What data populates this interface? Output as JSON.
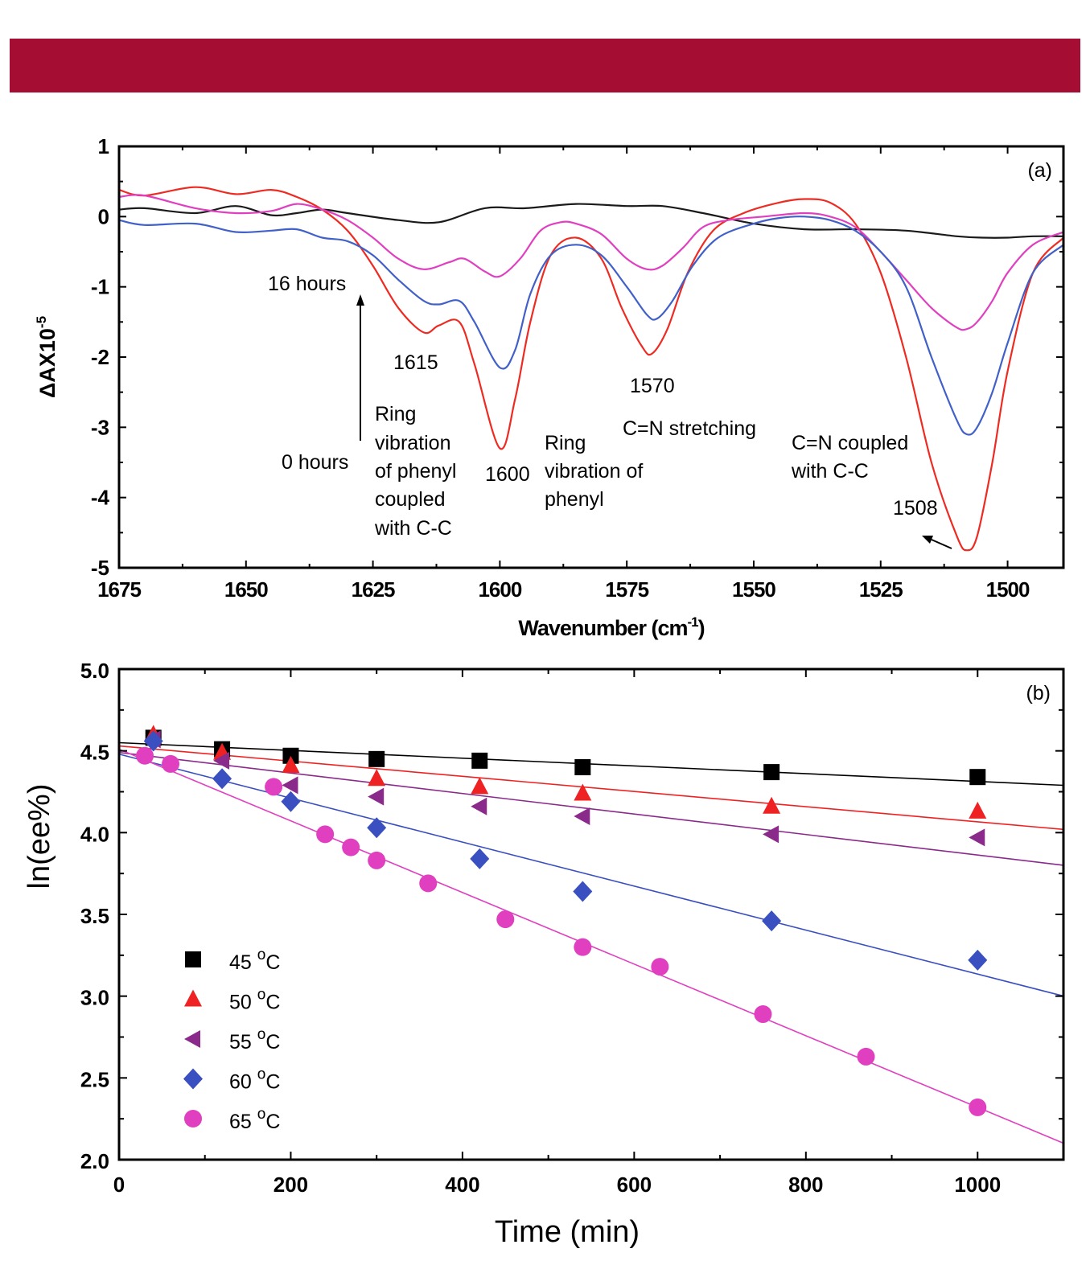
{
  "chart_data": [
    {
      "panel_label": "(a)",
      "type": "line",
      "xlabel": "Wavenumber (cm",
      "xlabel_sup": "-1",
      "xlabel_close": ")",
      "ylabel": "ΔAX10",
      "ylabel_sup": "-5",
      "xlim": [
        1675,
        1489
      ],
      "ylim": [
        -5,
        1
      ],
      "x_ticks": [
        1675,
        1650,
        1625,
        1600,
        1575,
        1550,
        1525,
        1500
      ],
      "y_ticks": [
        1,
        0,
        -1,
        -2,
        -3,
        -4,
        -5
      ],
      "grid": false,
      "colors": {
        "black": "#1a1a1a",
        "red": "#ee2b22",
        "magenta": "#e040c0",
        "blue": "#4160c8"
      },
      "series": [
        {
          "color": "black",
          "x": [
            1675,
            1670,
            1660,
            1652,
            1645,
            1640,
            1635,
            1630,
            1620,
            1612,
            1603,
            1595,
            1585,
            1575,
            1568,
            1560,
            1550,
            1540,
            1530,
            1520,
            1510,
            1505,
            1500,
            1495,
            1489
          ],
          "y": [
            0.1,
            0.12,
            0.05,
            0.15,
            0.02,
            0.05,
            0.1,
            0.05,
            -0.05,
            -0.08,
            0.12,
            0.12,
            0.18,
            0.15,
            0.15,
            0.05,
            -0.1,
            -0.18,
            -0.18,
            -0.2,
            -0.28,
            -0.3,
            -0.3,
            -0.28,
            -0.28
          ]
        },
        {
          "color": "red",
          "x": [
            1675,
            1670,
            1660,
            1652,
            1645,
            1640,
            1635,
            1630,
            1625,
            1620,
            1615,
            1612,
            1608,
            1605,
            1600,
            1597,
            1594,
            1590,
            1585,
            1580,
            1576,
            1572,
            1570,
            1567,
            1563,
            1558,
            1552,
            1545,
            1540,
            1535,
            1530,
            1525,
            1520,
            1515,
            1510,
            1508,
            1506,
            1503,
            1500,
            1495,
            1489
          ],
          "y": [
            0.38,
            0.3,
            0.42,
            0.32,
            0.38,
            0.28,
            0.1,
            -0.2,
            -0.7,
            -1.3,
            -1.65,
            -1.55,
            -1.5,
            -2.1,
            -3.3,
            -2.6,
            -1.5,
            -0.55,
            -0.3,
            -0.6,
            -1.3,
            -1.85,
            -1.95,
            -1.6,
            -0.8,
            -0.2,
            0.05,
            0.2,
            0.25,
            0.2,
            -0.1,
            -0.8,
            -2.0,
            -3.5,
            -4.55,
            -4.75,
            -4.55,
            -3.5,
            -2.2,
            -0.8,
            -0.3
          ]
        },
        {
          "color": "magenta",
          "x": [
            1675,
            1670,
            1660,
            1652,
            1645,
            1640,
            1635,
            1630,
            1625,
            1620,
            1615,
            1610,
            1607,
            1603,
            1600,
            1596,
            1592,
            1588,
            1585,
            1580,
            1575,
            1571,
            1568,
            1564,
            1560,
            1555,
            1548,
            1540,
            1535,
            1530,
            1525,
            1520,
            1515,
            1510,
            1508,
            1506,
            1503,
            1500,
            1495,
            1489
          ],
          "y": [
            0.28,
            0.3,
            0.12,
            0.05,
            0.08,
            0.18,
            0.1,
            -0.05,
            -0.3,
            -0.6,
            -0.75,
            -0.65,
            -0.6,
            -0.78,
            -0.85,
            -0.6,
            -0.2,
            -0.08,
            -0.1,
            -0.25,
            -0.6,
            -0.75,
            -0.7,
            -0.45,
            -0.15,
            -0.05,
            0.0,
            0.05,
            0.0,
            -0.15,
            -0.5,
            -0.9,
            -1.3,
            -1.58,
            -1.6,
            -1.5,
            -1.2,
            -0.8,
            -0.4,
            -0.22
          ]
        },
        {
          "color": "blue",
          "x": [
            1675,
            1670,
            1660,
            1652,
            1645,
            1640,
            1635,
            1630,
            1625,
            1620,
            1615,
            1612,
            1608,
            1605,
            1600,
            1597,
            1594,
            1590,
            1585,
            1580,
            1575,
            1571,
            1569,
            1566,
            1562,
            1557,
            1550,
            1545,
            1540,
            1535,
            1530,
            1525,
            1520,
            1515,
            1510,
            1508,
            1506,
            1503,
            1500,
            1495,
            1489
          ],
          "y": [
            -0.05,
            -0.12,
            -0.1,
            -0.22,
            -0.2,
            -0.18,
            -0.3,
            -0.35,
            -0.55,
            -0.9,
            -1.2,
            -1.25,
            -1.2,
            -1.5,
            -2.15,
            -1.9,
            -1.1,
            -0.55,
            -0.4,
            -0.55,
            -1.0,
            -1.4,
            -1.45,
            -1.2,
            -0.7,
            -0.3,
            -0.1,
            -0.02,
            0.0,
            -0.05,
            -0.2,
            -0.5,
            -1.0,
            -2.0,
            -2.9,
            -3.1,
            -3.0,
            -2.5,
            -1.8,
            -0.8,
            -0.4
          ]
        }
      ],
      "annotations": [
        {
          "text": "16 hours"
        },
        {
          "text": "0 hours"
        },
        {
          "text": "1615"
        },
        {
          "text": "Ring",
          "block": "ring1"
        },
        {
          "text": "vibration",
          "block": "ring1"
        },
        {
          "text": "of phenyl",
          "block": "ring1"
        },
        {
          "text": "coupled",
          "block": "ring1"
        },
        {
          "text": "with C-C",
          "block": "ring1"
        },
        {
          "text": "1600"
        },
        {
          "text": "Ring",
          "block": "ring2"
        },
        {
          "text": "vibration of",
          "block": "ring2"
        },
        {
          "text": "phenyl",
          "block": "ring2"
        },
        {
          "text": "1570"
        },
        {
          "text": "C=N stretching"
        },
        {
          "text": "C=N coupled",
          "block": "cn"
        },
        {
          "text": "with C-C",
          "block": "cn"
        },
        {
          "text": "1508"
        }
      ]
    },
    {
      "panel_label": "(b)",
      "type": "scatter",
      "xlabel": "Time (min)",
      "ylabel": "ln(ee%)",
      "xlim": [
        0,
        1100
      ],
      "ylim": [
        2.0,
        5.0
      ],
      "x_ticks": [
        0,
        200,
        400,
        600,
        800,
        1000
      ],
      "y_ticks": [
        "5.0",
        "4.5",
        "4.0",
        "3.5",
        "3.0",
        "2.5",
        "2.0"
      ],
      "grid": false,
      "legend_position": "bottom-left",
      "series": [
        {
          "name": "45 ",
          "name_sup": "o",
          "name_unit": "C",
          "marker": "square",
          "color": "#000000",
          "line_color": "#000000",
          "fit": [
            4.55,
            -0.000237
          ],
          "x": [
            40,
            120,
            200,
            300,
            420,
            540,
            760,
            1000
          ],
          "y": [
            4.58,
            4.51,
            4.47,
            4.45,
            4.44,
            4.4,
            4.37,
            4.34
          ]
        },
        {
          "name": "50 ",
          "name_sup": "o",
          "name_unit": "C",
          "marker": "triangle-up",
          "color": "#ee2222",
          "line_color": "#ee2222",
          "fit": [
            4.53,
            -0.000464
          ],
          "x": [
            40,
            120,
            200,
            300,
            420,
            540,
            760,
            1000
          ],
          "y": [
            4.6,
            4.49,
            4.41,
            4.33,
            4.28,
            4.24,
            4.16,
            4.13
          ]
        },
        {
          "name": "55 ",
          "name_sup": "o",
          "name_unit": "C",
          "marker": "triangle-left",
          "color": "#8a2a8a",
          "line_color": "#8a2a8a",
          "fit": [
            4.49,
            -0.000627
          ],
          "x": [
            40,
            120,
            200,
            300,
            420,
            540,
            760,
            1000
          ],
          "y": [
            4.57,
            4.44,
            4.29,
            4.22,
            4.16,
            4.1,
            3.99,
            3.97
          ]
        },
        {
          "name": "60 ",
          "name_sup": "o",
          "name_unit": "C",
          "marker": "diamond",
          "color": "#3a4fc0",
          "line_color": "#3a4fc0",
          "fit": [
            4.48,
            -0.001345
          ],
          "x": [
            40,
            120,
            200,
            300,
            420,
            540,
            760,
            1000
          ],
          "y": [
            4.56,
            4.33,
            4.19,
            4.03,
            3.84,
            3.64,
            3.46,
            3.22
          ]
        },
        {
          "name": "65 ",
          "name_sup": "o",
          "name_unit": "C",
          "marker": "circle",
          "color": "#e040c0",
          "line_color": "#e040c0",
          "fit": [
            4.51,
            -0.00219
          ],
          "x": [
            30,
            60,
            180,
            240,
            270,
            300,
            360,
            450,
            540,
            630,
            750,
            870,
            1000
          ],
          "y": [
            4.47,
            4.42,
            4.28,
            3.99,
            3.91,
            3.83,
            3.69,
            3.47,
            3.3,
            3.18,
            2.89,
            2.63,
            2.32
          ]
        }
      ]
    }
  ]
}
